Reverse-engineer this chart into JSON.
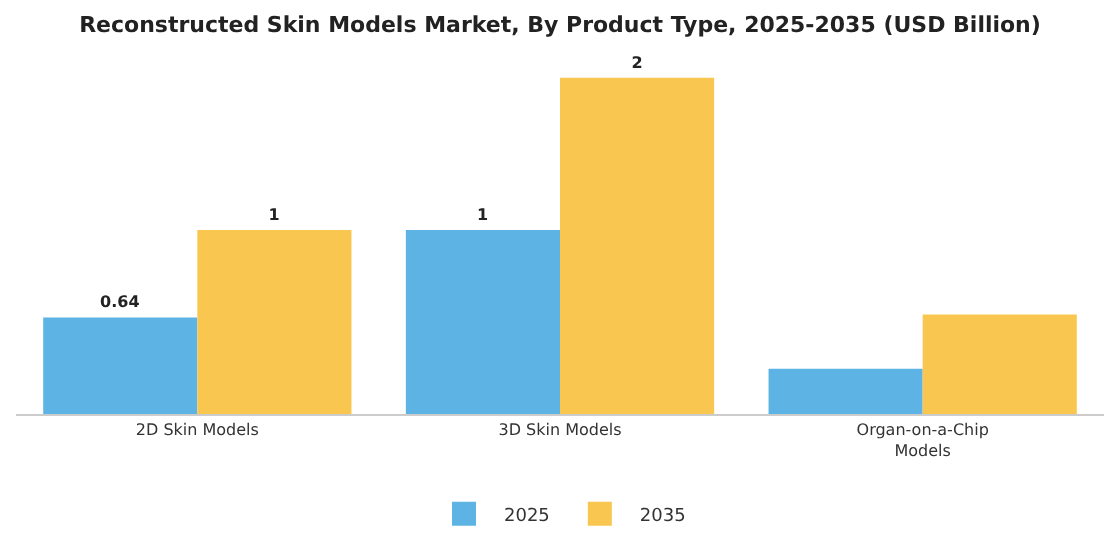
{
  "chart_data": {
    "type": "bar",
    "title": "Reconstructed Skin Models Market, By Product Type, 2025-2035 (USD Billion)",
    "categories": [
      "2D Skin Models",
      "3D Skin Models",
      "Organ-on-a-Chip Models"
    ],
    "series": [
      {
        "name": "2025",
        "color": "#5db3e4",
        "values": [
          0.64,
          1.22,
          0.3
        ],
        "value_labels": [
          "0.64",
          "1",
          null
        ]
      },
      {
        "name": "2035",
        "color": "#f9c74f",
        "values": [
          1.22,
          2.23,
          0.66
        ],
        "value_labels": [
          "1",
          "2",
          null
        ]
      }
    ],
    "legend": "bottom",
    "tick_labels": "x"
  }
}
